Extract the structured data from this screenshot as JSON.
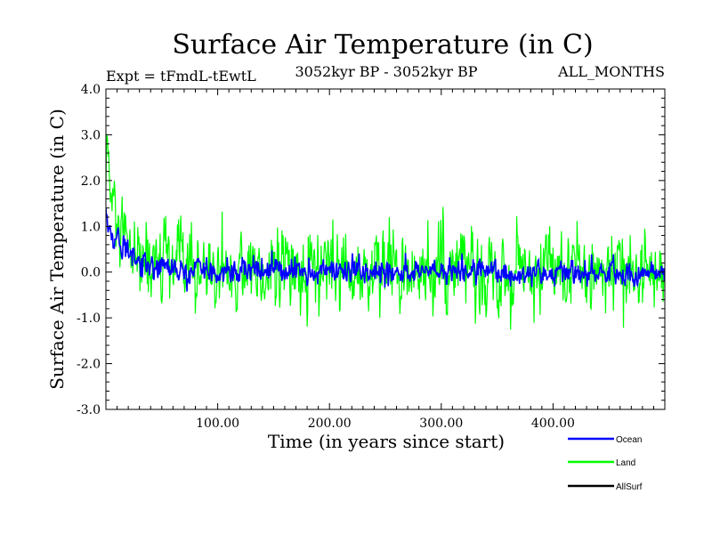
{
  "chart_data": {
    "type": "line",
    "title": "Surface Air Temperature (in C)",
    "subtitle_left": "Expt = tFmdL-tEwtL",
    "subtitle_center": "3052kyr BP - 3052kyr BP",
    "subtitle_right": "ALL_MONTHS",
    "xlabel": "Time (in years since start)",
    "ylabel": "Surface Air Temperature (in C)",
    "xlim": [
      0,
      500
    ],
    "ylim": [
      -3.0,
      4.0
    ],
    "x_ticks": [
      100,
      200,
      300,
      400
    ],
    "x_tick_labels": [
      "100.00",
      "200.00",
      "300.00",
      "400.00"
    ],
    "y_ticks": [
      4.0,
      3.0,
      2.0,
      1.0,
      0.0,
      -1.0,
      -2.0,
      -3.0
    ],
    "y_tick_labels": [
      "4.0",
      "3.0",
      "2.0",
      "1.0",
      "0.0",
      "-1.0",
      "-2.0",
      "-3.0"
    ],
    "grid": false,
    "legend_position": "bottom-right, below plot",
    "series": [
      {
        "name": "Land",
        "color": "#00ff00",
        "approx_mean": 0.0,
        "approx_range": [
          -2.05,
          3.2
        ],
        "note": "noisy annual series; starts near 1.9 and decays to ~0 within ~15 years; high-frequency variability about ±0.9",
        "x": [
          0,
          1,
          2,
          3,
          5,
          8,
          10,
          15,
          20,
          30,
          40,
          50,
          60,
          80,
          100,
          130,
          150,
          200,
          250,
          300,
          350,
          400,
          450,
          500
        ],
        "values": [
          1.9,
          3.2,
          2.5,
          1.8,
          1.5,
          1.2,
          0.9,
          0.6,
          0.4,
          0.3,
          0.2,
          0.1,
          0.1,
          0.05,
          0.0,
          0.05,
          0.0,
          0.0,
          0.0,
          0.05,
          0.0,
          0.0,
          0.0,
          0.0
        ]
      },
      {
        "name": "Ocean",
        "color": "#0000ff",
        "approx_mean": 0.0,
        "approx_range": [
          -0.6,
          1.6
        ],
        "note": "smoother series; starts near 1.5 and decays to ~0 within ~40 years; variability about ±0.3",
        "x": [
          0,
          1,
          2,
          3,
          5,
          8,
          10,
          15,
          20,
          30,
          40,
          50,
          60,
          80,
          100,
          130,
          150,
          200,
          250,
          300,
          350,
          400,
          450,
          500
        ],
        "values": [
          1.55,
          1.2,
          1.0,
          0.9,
          0.75,
          0.6,
          0.55,
          0.45,
          0.35,
          0.25,
          0.15,
          0.1,
          0.05,
          0.05,
          0.0,
          0.05,
          0.0,
          0.0,
          0.0,
          0.0,
          0.0,
          0.0,
          0.0,
          0.0
        ]
      },
      {
        "name": "AllSurf",
        "color": "#000000",
        "note": "listed in legend; not visibly drawn in plot area",
        "x": [],
        "values": []
      }
    ]
  }
}
